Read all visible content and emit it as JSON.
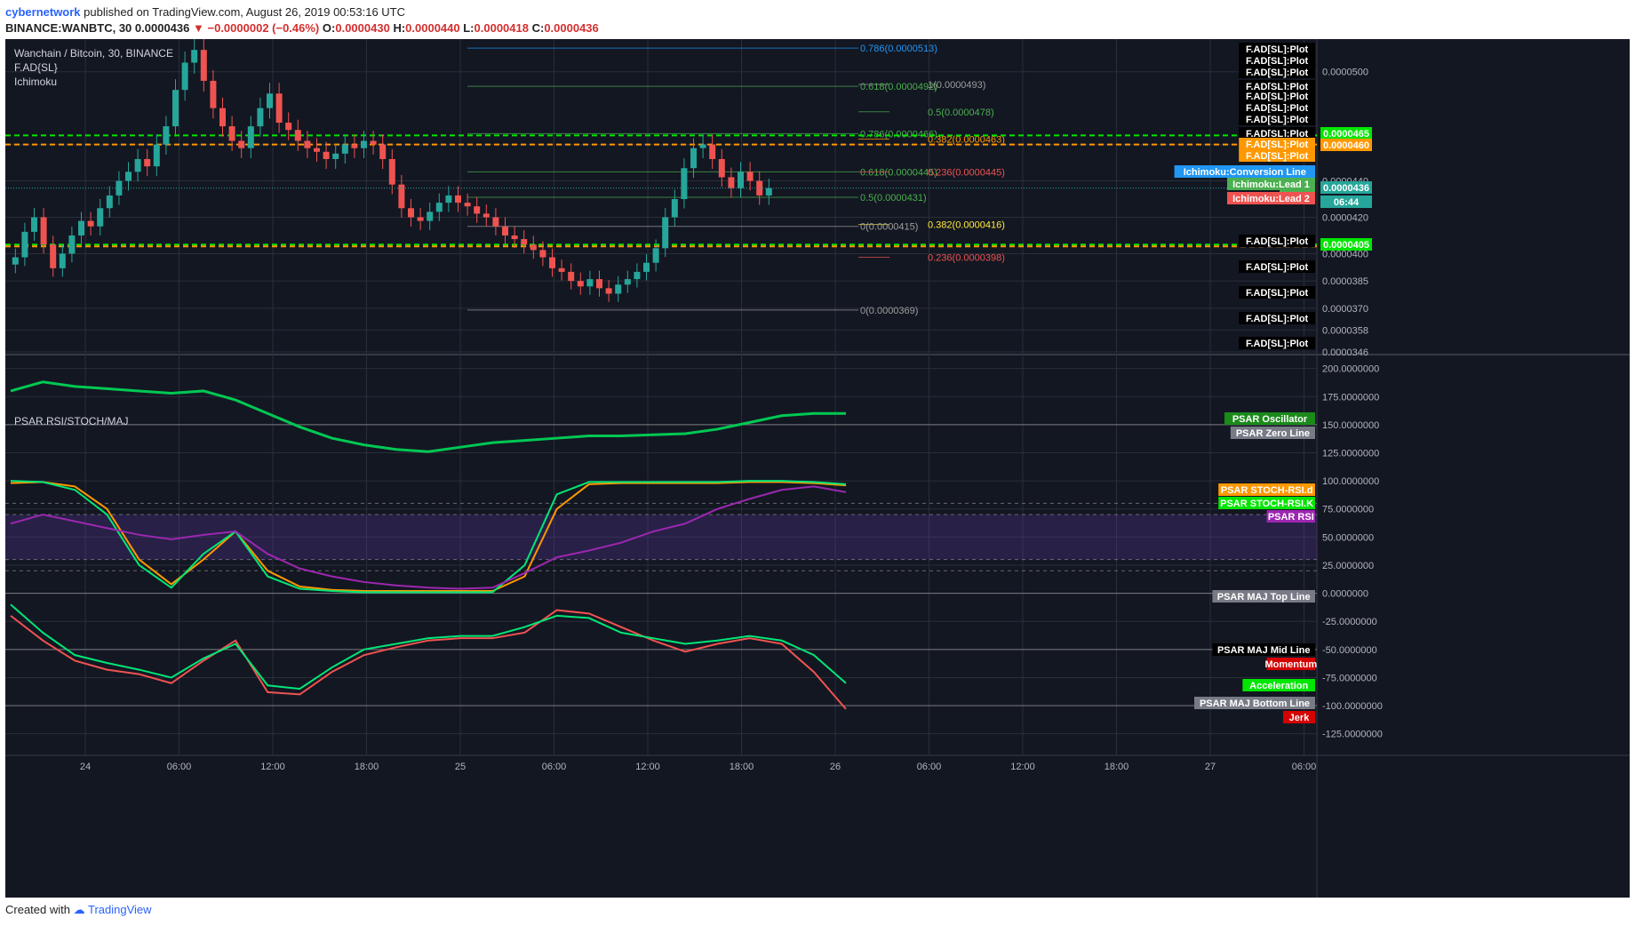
{
  "header": {
    "author": "cybernetwork",
    "published_text": "published on TradingView.com, August 26, 2019 00:53:16 UTC",
    "symbol_line": "BINANCE:WANBTC, 30",
    "last": "0.0000436",
    "change": "−0.0000002 (−0.46%)",
    "ohlc": {
      "o_label": "O:",
      "o": "0.0000430",
      "h_label": "H:",
      "h": "0.0000440",
      "l_label": "L:",
      "l": "0.0000418",
      "c_label": "C:",
      "c": "0.0000436"
    }
  },
  "legend": {
    "title": "Wanchain / Bitcoin, 30, BINANCE",
    "indicator1": "F.AD{SL}",
    "indicator2": "Ichimoku",
    "pane2_title": "PSAR.RSI/STOCH/MAJ"
  },
  "footer": {
    "created_with": "Created with",
    "brand": "TradingView"
  },
  "colors": {
    "background": "#131722",
    "grid": "#2a2e39",
    "text": "#b2b5be",
    "up": "#26a69a",
    "down": "#ef5350",
    "orange": "#ff9800",
    "green_line": "#00e600",
    "purple": "#9c27b0",
    "fib_gray": "#9e9e9e"
  },
  "chart_data": [
    {
      "type": "candlestick",
      "title": "Wanchain / Bitcoin, 30, BINANCE",
      "x_tick_labels": [
        "24",
        "06:00",
        "12:00",
        "18:00",
        "25",
        "06:00",
        "12:00",
        "18:00",
        "26",
        "06:00",
        "12:00",
        "18:00",
        "27",
        "06:00"
      ],
      "y_tick_labels": [
        "0.0000500",
        "0.0000460",
        "0.0000440",
        "0.0000420",
        "0.0000400",
        "0.0000385",
        "0.0000370",
        "0.0000358",
        "0.0000346"
      ],
      "ylim": [
        3.46e-05,
        5.15e-05
      ],
      "last_price": "0.0000436",
      "countdown": "06:44",
      "candles_close": [
        3.98e-05,
        4.12e-05,
        4.2e-05,
        4.05e-05,
        3.92e-05,
        4e-05,
        4.1e-05,
        4.18e-05,
        4.15e-05,
        4.25e-05,
        4.32e-05,
        4.4e-05,
        4.45e-05,
        4.52e-05,
        4.48e-05,
        4.6e-05,
        4.7e-05,
        4.9e-05,
        5.05e-05,
        5.12e-05,
        4.95e-05,
        4.8e-05,
        4.7e-05,
        4.62e-05,
        4.58e-05,
        4.7e-05,
        4.8e-05,
        4.88e-05,
        4.72e-05,
        4.68e-05,
        4.62e-05,
        4.58e-05,
        4.56e-05,
        4.52e-05,
        4.55e-05,
        4.6e-05,
        4.58e-05,
        4.62e-05,
        4.6e-05,
        4.52e-05,
        4.38e-05,
        4.25e-05,
        4.2e-05,
        4.18e-05,
        4.23e-05,
        4.28e-05,
        4.32e-05,
        4.28e-05,
        4.26e-05,
        4.22e-05,
        4.2e-05,
        4.15e-05,
        4.1e-05,
        4.08e-05,
        4.05e-05,
        4.02e-05,
        3.98e-05,
        3.92e-05,
        3.9e-05,
        3.85e-05,
        3.82e-05,
        3.86e-05,
        3.81e-05,
        3.78e-05,
        3.83e-05,
        3.86e-05,
        3.9e-05,
        3.95e-05,
        4.03e-05,
        4.2e-05,
        4.3e-05,
        4.47e-05,
        4.58e-05,
        4.6e-05,
        4.52e-05,
        4.42e-05,
        4.36e-05,
        4.45e-05,
        4.4e-05,
        4.32e-05,
        4.36e-05
      ],
      "fibonacci_levels": [
        {
          "label": "0.786(0.0000513)",
          "price": 5.13e-05
        },
        {
          "label": "1(0.0000493)",
          "price": 4.93e-05
        },
        {
          "label": "0.618(0.0000492)",
          "price": 4.92e-05
        },
        {
          "label": "0.5(0.0000478)",
          "price": 4.78e-05
        },
        {
          "label": "0.786(0.0000466)",
          "price": 4.66e-05
        },
        {
          "label": "0.382(0.0000463)",
          "price": 4.63e-05
        },
        {
          "label": "0.618(0.0000445)",
          "price": 4.45e-05
        },
        {
          "label": "0.236(0.0000445)",
          "price": 4.45e-05
        },
        {
          "label": "0.5(0.0000431)",
          "price": 4.31e-05
        },
        {
          "label": "0.382(0.0000416)",
          "price": 4.16e-05
        },
        {
          "label": "0(0.0000415)",
          "price": 4.15e-05
        },
        {
          "label": "0.236(0.0000398)",
          "price": 3.98e-05
        },
        {
          "label": "0(0.0000369)",
          "price": 3.69e-05
        }
      ],
      "horizontal_levels": [
        {
          "price": 4.65e-05,
          "color": "green_dashed"
        },
        {
          "price": 4.6e-05,
          "color": "orange_dashed"
        },
        {
          "price": 4.05e-05,
          "color": "green_dashed"
        },
        {
          "price": 4.04e-05,
          "color": "orange_dashed"
        }
      ],
      "right_labels": [
        {
          "text": "F.AD[SL]:Plot"
        },
        {
          "text": "F.AD[SL]:Plot"
        },
        {
          "text": "F.AD[SL]:Plot"
        },
        {
          "text": "F.AD[SL]:Plot"
        },
        {
          "text": "F.AD[SL]:Plot"
        },
        {
          "text": "F.AD[SL]:Plot"
        },
        {
          "text": "F.AD[SL]:Plot"
        },
        {
          "text": "F.AD[SL]:Plot"
        },
        {
          "text": "F.AD[SL]:Plot"
        },
        {
          "text": "0.0000465"
        },
        {
          "text": "F.AD[SL]:Plot"
        },
        {
          "text": "0.0000460"
        },
        {
          "text": "F.AD[SL]:Plot"
        },
        {
          "text": "Ichimoku:Conversion Line"
        },
        {
          "text": "Ichim"
        },
        {
          "text": "Ichimoku:Lead 1"
        },
        {
          "text": "0.0000436"
        },
        {
          "text": "Ic"
        },
        {
          "text": "Ichimoku:Lead 2"
        },
        {
          "text": "06:44"
        },
        {
          "text": "F.AD[SL]:Plot"
        },
        {
          "text": "0.0000405"
        },
        {
          "text": "F.AD[SL]:Plot"
        },
        {
          "text": "F.AD[SL]:Plot"
        },
        {
          "text": "F.AD[SL]:Plot"
        },
        {
          "text": "F.AD[SL]:Plot"
        }
      ]
    },
    {
      "type": "line",
      "title": "PSAR.RSI/STOCH/MAJ",
      "y_tick_labels": [
        "200.0000000",
        "175.0000000",
        "150.0000000",
        "125.0000000",
        "100.0000000",
        "75.0000000",
        "50.0000000",
        "25.0000000",
        "0.0000000",
        "-25.0000000",
        "-50.0000000",
        "-75.0000000",
        "-100.0000000",
        "-125.0000000"
      ],
      "ylim": [
        -130,
        210
      ],
      "series": [
        {
          "name": "PSAR Oscillator",
          "values": [
            180,
            188,
            184,
            182,
            180,
            178,
            180,
            172,
            160,
            148,
            138,
            132,
            128,
            126,
            130,
            134,
            136,
            138,
            140,
            140,
            141,
            142,
            146,
            152,
            158,
            160,
            160
          ]
        },
        {
          "name": "PSAR STOCH-RSI.d",
          "values": [
            98,
            99,
            95,
            75,
            30,
            8,
            30,
            55,
            20,
            6,
            3,
            2,
            2,
            2,
            2,
            2,
            15,
            75,
            97,
            98,
            98,
            98,
            98,
            99,
            99,
            98,
            96
          ]
        },
        {
          "name": "PSAR STOCH-RSI.K",
          "values": [
            100,
            99,
            92,
            70,
            25,
            5,
            35,
            55,
            15,
            4,
            2,
            1,
            1,
            1,
            1,
            1,
            25,
            88,
            99,
            99,
            99,
            99,
            99,
            100,
            100,
            99,
            97
          ]
        },
        {
          "name": "PSAR RSI",
          "values": [
            62,
            70,
            64,
            58,
            52,
            48,
            52,
            55,
            35,
            22,
            15,
            10,
            7,
            5,
            4,
            5,
            18,
            32,
            38,
            45,
            55,
            62,
            75,
            84,
            92,
            95,
            90
          ]
        },
        {
          "name": "Momentum",
          "values": [
            -20,
            -42,
            -60,
            -68,
            -72,
            -80,
            -60,
            -42,
            -88,
            -90,
            -70,
            -55,
            -48,
            -42,
            -40,
            -40,
            -35,
            -15,
            -18,
            -30,
            -42,
            -52,
            -45,
            -40,
            -45,
            -70,
            -103
          ]
        },
        {
          "name": "Acceleration",
          "values": [
            -10,
            -35,
            -55,
            -62,
            -68,
            -75,
            -58,
            -45,
            -82,
            -85,
            -66,
            -50,
            -45,
            -40,
            -38,
            -38,
            -30,
            -20,
            -22,
            -35,
            -40,
            -45,
            -42,
            -38,
            -42,
            -55,
            -80
          ]
        }
      ],
      "reference_lines": [
        {
          "name": "PSAR Zero Line",
          "value": 150
        },
        {
          "name": "PSAR MAJ Top Line",
          "value": 0
        },
        {
          "name": "PSAR MAJ Mid Line",
          "value": -50
        },
        {
          "name": "PSAR MAJ Bottom Line",
          "value": -100
        }
      ],
      "right_labels": [
        {
          "text": "PSAR Oscillator"
        },
        {
          "text": "PSAR Zero Line"
        },
        {
          "text": "PSAR STOCH-RSI.d"
        },
        {
          "text": "PSAR STOCH-RSI.K"
        },
        {
          "text": "PSAR RSI"
        },
        {
          "text": "PSAR MAJ Top Line"
        },
        {
          "text": "PSAR MAJ Mid Line"
        },
        {
          "text": "Momentum"
        },
        {
          "text": "Acceleration"
        },
        {
          "text": "PSAR MAJ Bottom Line"
        },
        {
          "text": "Jerk"
        }
      ]
    }
  ]
}
